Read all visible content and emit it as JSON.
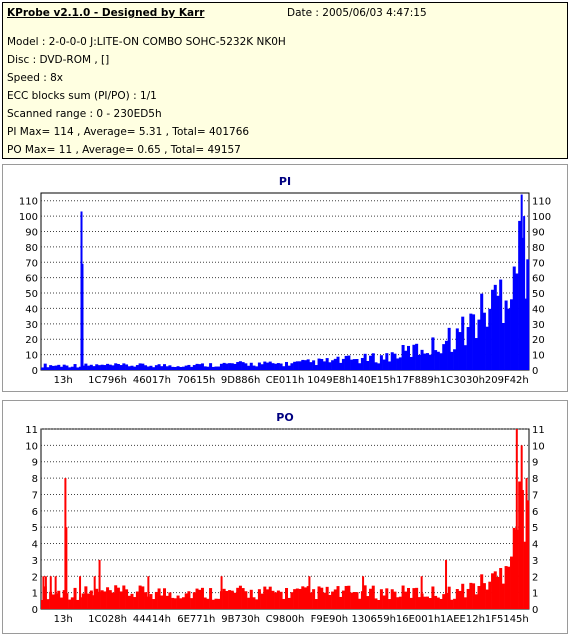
{
  "info": {
    "title": "KProbe v2.1.0 - Designed by Karr",
    "date": "Date : 2005/06/03 4:47:15",
    "lines": [
      "Model : 2-0-0-0 J:LITE-ON COMBO SOHC-5232K NK0H",
      "Disc : DVD-ROM ,  []",
      "Speed : 8x",
      "ECC blocks sum (PI/PO) : 1/1",
      "Scanned range : 0 - 230ED5h",
      "PI Max= 114 , Average= 5.31 , Total= 401766",
      "PO Max= 11 , Average= 0.65 , Total= 49157"
    ]
  },
  "colors": {
    "pi": "#0000ff",
    "po": "#ff0000",
    "title": "#000080",
    "panel_bg": "#ffffe1"
  },
  "chart_data": [
    {
      "type": "bar",
      "title": "PI",
      "ylim": [
        0,
        115
      ],
      "yticks": [
        0,
        10,
        20,
        30,
        40,
        50,
        60,
        70,
        80,
        90,
        100,
        110
      ],
      "xticks": [
        "13h",
        "1C796h",
        "46017h",
        "70615h",
        "9D886h",
        "CE011h",
        "1049E8h",
        "140E15h",
        "17F889h",
        "1C3030h",
        "209F42h"
      ],
      "grid": "dotted horizontal",
      "envelope": [
        [
          0,
          3
        ],
        [
          0.1,
          3
        ],
        [
          0.2,
          3
        ],
        [
          0.3,
          3
        ],
        [
          0.4,
          4
        ],
        [
          0.5,
          4
        ],
        [
          0.6,
          6
        ],
        [
          0.7,
          8
        ],
        [
          0.75,
          12
        ],
        [
          0.8,
          15
        ],
        [
          0.85,
          22
        ],
        [
          0.9,
          35
        ],
        [
          0.93,
          45
        ],
        [
          0.96,
          60
        ],
        [
          0.98,
          75
        ],
        [
          1.0,
          85
        ]
      ],
      "spikes": [
        {
          "x": 0.083,
          "value": 103
        },
        {
          "x": 0.085,
          "value": 69
        },
        {
          "x": 0.985,
          "value": 114
        },
        {
          "x": 0.99,
          "value": 100
        }
      ]
    },
    {
      "type": "bar",
      "title": "PO",
      "ylim": [
        0,
        11
      ],
      "yticks": [
        0,
        1,
        2,
        3,
        4,
        5,
        6,
        7,
        8,
        9,
        10,
        11
      ],
      "xticks": [
        "13h",
        "1C028h",
        "44414h",
        "6E771h",
        "9B730h",
        "C9800h",
        "F9E90h",
        "130659h",
        "16E001h",
        "1AEE12h",
        "1F5145h"
      ],
      "grid": "dotted horizontal",
      "envelope": [
        [
          0,
          1
        ],
        [
          0.85,
          1
        ],
        [
          0.9,
          1.5
        ],
        [
          0.94,
          2
        ],
        [
          0.96,
          4
        ],
        [
          0.98,
          6
        ],
        [
          1.0,
          8
        ]
      ],
      "spikes": [
        {
          "x": 0.005,
          "value": 2
        },
        {
          "x": 0.01,
          "value": 2
        },
        {
          "x": 0.02,
          "value": 2
        },
        {
          "x": 0.03,
          "value": 2
        },
        {
          "x": 0.05,
          "value": 8
        },
        {
          "x": 0.052,
          "value": 5
        },
        {
          "x": 0.08,
          "value": 2
        },
        {
          "x": 0.11,
          "value": 2
        },
        {
          "x": 0.12,
          "value": 3
        },
        {
          "x": 0.22,
          "value": 2
        },
        {
          "x": 0.37,
          "value": 2
        },
        {
          "x": 0.55,
          "value": 2
        },
        {
          "x": 0.66,
          "value": 2
        },
        {
          "x": 0.78,
          "value": 2
        },
        {
          "x": 0.83,
          "value": 3
        },
        {
          "x": 0.975,
          "value": 11
        },
        {
          "x": 0.985,
          "value": 10
        },
        {
          "x": 0.995,
          "value": 8
        }
      ]
    }
  ]
}
